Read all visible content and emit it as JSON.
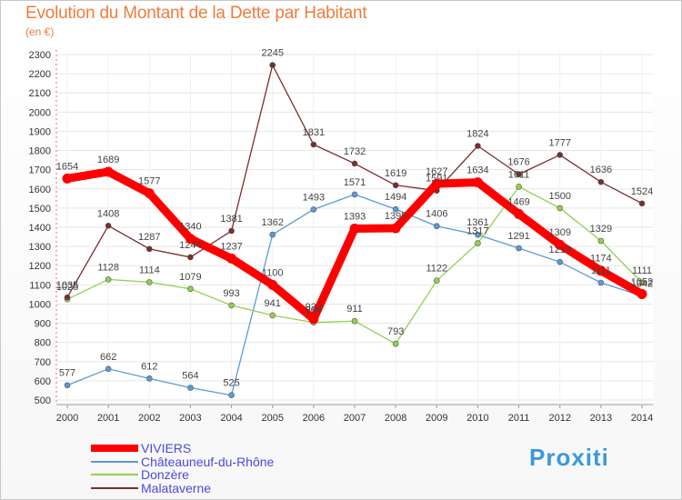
{
  "header": {
    "title": "Evolution du Montant de la Dette par Habitant",
    "subtitle": "(en €)"
  },
  "logo": {
    "text": "Proxiti"
  },
  "chart_data": {
    "type": "line",
    "title": "Evolution du Montant de la Dette par Habitant",
    "subtitle": "(en €)",
    "xlabel": "",
    "ylabel": "",
    "x": [
      "2000",
      "2001",
      "2002",
      "2003",
      "2004",
      "2005",
      "2006",
      "2007",
      "2008",
      "2009",
      "2010",
      "2011",
      "2012",
      "2013",
      "2014"
    ],
    "ylim": [
      500,
      2300
    ],
    "yticks": [
      500,
      600,
      700,
      800,
      900,
      1000,
      1100,
      1200,
      1300,
      1400,
      1500,
      1600,
      1700,
      1800,
      1900,
      2000,
      2100,
      2200,
      2300
    ],
    "grid": true,
    "legend_position": "bottom-left",
    "series": [
      {
        "name": "VIVIERS",
        "color": "#ff0000",
        "values": [
          1654,
          1689,
          1577,
          1340,
          1237,
          1100,
          922,
          1393,
          1395,
          1627,
          1634,
          1469,
          1309,
          1174,
          1052
        ]
      },
      {
        "name": "Châteauneuf-du-Rhône",
        "color": "#5b9bd5",
        "values": [
          577,
          662,
          612,
          564,
          525,
          1362,
          1493,
          1571,
          1494,
          1406,
          1361,
          1291,
          1219,
          1111,
          1042
        ]
      },
      {
        "name": "Donzère",
        "color": "#92d050",
        "values": [
          1025,
          1128,
          1114,
          1079,
          993,
          941,
          904,
          911,
          793,
          1122,
          1317,
          1611,
          1500,
          1329,
          1111
        ]
      },
      {
        "name": "Malataverne",
        "color": "#7b2c2c",
        "values": [
          1035,
          1408,
          1287,
          1244,
          1381,
          2245,
          1831,
          1732,
          1619,
          1591,
          1824,
          1676,
          1777,
          1636,
          1524
        ]
      }
    ]
  }
}
